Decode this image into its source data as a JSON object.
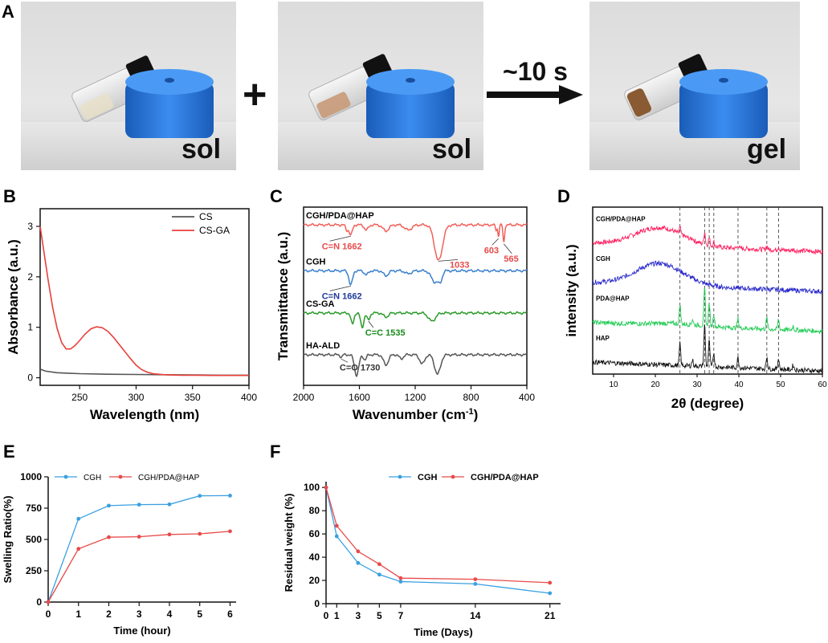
{
  "panel_a": {
    "letter": "A",
    "photos": [
      {
        "state_label": "sol",
        "vial_liquid": "clear"
      },
      {
        "state_label": "sol",
        "vial_liquid": "brown"
      },
      {
        "state_label": "gel",
        "vial_liquid": "dark-brown"
      }
    ],
    "plus_symbol": "+",
    "arrow_label": "~10 s",
    "cap_color": "#1f6fd1"
  },
  "chart_data": [
    {
      "panel": "B",
      "type": "line",
      "title": "",
      "xlabel": "Wavelength (nm)",
      "ylabel": "Absorbance (a.u.)",
      "xlim": [
        215,
        400
      ],
      "ylim": [
        -0.15,
        3.35
      ],
      "xticks": [
        250,
        300,
        350,
        400
      ],
      "yticks": [
        0,
        1,
        2,
        3
      ],
      "legend_position": "top-right",
      "series": [
        {
          "name": "CS",
          "color": "#555555",
          "x": [
            215,
            220,
            230,
            240,
            250,
            275,
            300,
            325,
            350,
            375,
            400
          ],
          "y": [
            0.17,
            0.13,
            0.1,
            0.09,
            0.08,
            0.07,
            0.065,
            0.06,
            0.055,
            0.05,
            0.05
          ]
        },
        {
          "name": "CS-GA",
          "color": "#e8403b",
          "x": [
            215,
            218,
            222,
            226,
            230,
            234,
            238,
            242,
            246,
            250,
            255,
            260,
            265,
            270,
            275,
            280,
            285,
            290,
            295,
            300,
            305,
            310,
            315,
            320,
            325,
            330,
            340,
            350,
            370,
            400
          ],
          "y": [
            3.0,
            2.55,
            1.95,
            1.4,
            0.98,
            0.7,
            0.57,
            0.57,
            0.64,
            0.74,
            0.87,
            0.97,
            1.01,
            0.99,
            0.92,
            0.8,
            0.66,
            0.52,
            0.38,
            0.25,
            0.16,
            0.11,
            0.08,
            0.07,
            0.06,
            0.055,
            0.05,
            0.05,
            0.045,
            0.045
          ]
        }
      ]
    },
    {
      "panel": "C",
      "type": "line",
      "title": "",
      "xlabel": "Wavenumber (cm",
      "xlabel_superscript": "-1",
      "xlabel_suffix": ")",
      "ylabel": "Transmittance (a.u.)",
      "xlim": [
        2000,
        400
      ],
      "xticks": [
        2000,
        1600,
        1200,
        800,
        400
      ],
      "series": [
        {
          "name": "CGH/PDA@HAP",
          "color": "#f0605a",
          "baseline": 3.0,
          "dips": [
            [
              1690,
              0.1,
              12
            ],
            [
              1662,
              0.2,
              16
            ],
            [
              1550,
              0.1,
              20
            ],
            [
              1410,
              0.12,
              30
            ],
            [
              1250,
              0.1,
              35
            ],
            [
              1033,
              0.7,
              40
            ],
            [
              620,
              0.1,
              8
            ],
            [
              603,
              0.22,
              7
            ],
            [
              565,
              0.35,
              8
            ]
          ]
        },
        {
          "name": "CGH",
          "color": "#3a7fcc",
          "baseline": 2.1,
          "dips": [
            [
              1662,
              0.28,
              18
            ],
            [
              1550,
              0.08,
              20
            ],
            [
              1410,
              0.1,
              25
            ],
            [
              1250,
              0.06,
              30
            ],
            [
              1060,
              0.22,
              35
            ],
            [
              1020,
              0.18,
              20
            ]
          ]
        },
        {
          "name": "CS-GA",
          "color": "#2a9a2a",
          "baseline": 1.27,
          "dips": [
            [
              1650,
              0.22,
              15
            ],
            [
              1580,
              0.28,
              16
            ],
            [
              1535,
              0.14,
              15
            ],
            [
              1410,
              0.08,
              25
            ],
            [
              1080,
              0.16,
              35
            ]
          ]
        },
        {
          "name": "HA-ALD",
          "color": "#555555",
          "baseline": 0.45,
          "dips": [
            [
              1730,
              0.05,
              10
            ],
            [
              1620,
              0.4,
              22
            ],
            [
              1560,
              0.1,
              15
            ],
            [
              1410,
              0.2,
              25
            ],
            [
              1300,
              0.08,
              20
            ],
            [
              1150,
              0.18,
              25
            ],
            [
              1040,
              0.38,
              30
            ]
          ]
        }
      ],
      "annotations": [
        {
          "text": "C=N 1662",
          "color": "#e84a4a",
          "series": "CGH/PDA@HAP",
          "x": 1662
        },
        {
          "text": "1033",
          "color": "#e84a4a",
          "series": "CGH/PDA@HAP",
          "x": 1033
        },
        {
          "text": "603",
          "color": "#e84a4a",
          "series": "CGH/PDA@HAP",
          "x": 603
        },
        {
          "text": "565",
          "color": "#e84a4a",
          "series": "CGH/PDA@HAP",
          "x": 565
        },
        {
          "text": "C=N 1662",
          "color": "#1f3a9a",
          "series": "CGH",
          "x": 1662
        },
        {
          "text": "C=C 1535",
          "color": "#1a8a1a",
          "series": "CS-GA",
          "x": 1535
        },
        {
          "text": "C=O 1730",
          "color": "#333333",
          "series": "HA-ALD",
          "x": 1730
        }
      ]
    },
    {
      "panel": "D",
      "type": "line",
      "title": "",
      "xlabel": "2θ (degree)",
      "ylabel": "intensity (a.u.)",
      "xlim": [
        5,
        60
      ],
      "xticks": [
        10,
        20,
        30,
        40,
        50,
        60
      ],
      "reference_lines_2theta": [
        25.9,
        31.8,
        32.9,
        34.0,
        39.8,
        46.7,
        49.5
      ],
      "series": [
        {
          "name": "CGH/PDA@HAP",
          "color": "#ff2060",
          "baseline": 3.0,
          "hump_center": 21,
          "hump_height": 0.45,
          "peak_scale": 0.3
        },
        {
          "name": "CGH",
          "color": "#2a2acc",
          "baseline": 2.0,
          "hump_center": 21,
          "hump_height": 0.55,
          "peak_scale": 0.0
        },
        {
          "name": "PDA@HAP",
          "color": "#22cc55",
          "baseline": 1.0,
          "hump_center": 25,
          "hump_height": 0.05,
          "peak_scale": 0.9
        },
        {
          "name": "HAP",
          "color": "#111111",
          "baseline": 0.0,
          "hump_center": 25,
          "hump_height": 0.0,
          "peak_scale": 1.0
        }
      ]
    },
    {
      "panel": "E",
      "type": "line",
      "title": "",
      "xlabel": "Time (hour)",
      "ylabel": "Swelling Ratio(%)",
      "xlim": [
        0,
        6.2
      ],
      "ylim": [
        0,
        1000
      ],
      "xticks": [
        0,
        1,
        2,
        3,
        4,
        5,
        6
      ],
      "yticks": [
        0,
        250,
        500,
        750,
        1000
      ],
      "legend_position": "top",
      "series": [
        {
          "name": "CGH",
          "color": "#3aa0e0",
          "x": [
            0,
            1,
            2,
            3,
            4,
            5,
            6
          ],
          "y": [
            0,
            665,
            770,
            778,
            780,
            848,
            850
          ]
        },
        {
          "name": "CGH/PDA@HAP",
          "color": "#e84a4a",
          "x": [
            0,
            1,
            2,
            3,
            4,
            5,
            6
          ],
          "y": [
            0,
            425,
            518,
            522,
            540,
            545,
            565
          ]
        }
      ]
    },
    {
      "panel": "F",
      "type": "line",
      "title": "",
      "xlabel": "Time (Days)",
      "ylabel": "Residual weight (%)",
      "xlim": [
        0,
        22
      ],
      "ylim": [
        0,
        105
      ],
      "xticks": [
        0,
        1,
        3,
        5,
        7,
        14,
        21
      ],
      "yticks": [
        0,
        20,
        40,
        60,
        80,
        100
      ],
      "legend_position": "top-right",
      "series": [
        {
          "name": "CGH",
          "color": "#3aa0e0",
          "x": [
            0,
            1,
            3,
            5,
            7,
            14,
            21
          ],
          "y": [
            100,
            58,
            35,
            25,
            19,
            17,
            9
          ]
        },
        {
          "name": "CGH/PDA@HAP",
          "color": "#e84a4a",
          "x": [
            0,
            1,
            3,
            5,
            7,
            14,
            21
          ],
          "y": [
            100,
            67,
            45,
            34,
            22,
            21,
            18
          ]
        }
      ]
    }
  ]
}
